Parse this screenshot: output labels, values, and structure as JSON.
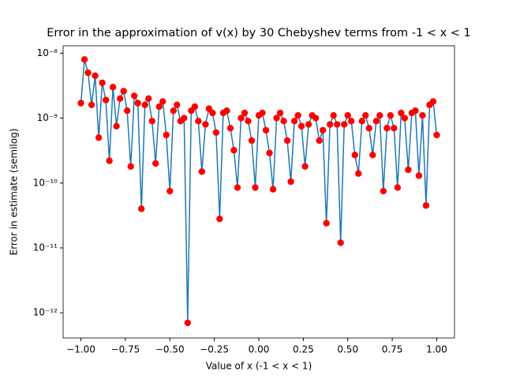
{
  "chart_data": {
    "type": "line",
    "title": "Error in the approximation of v(x) by 30 Chebyshev terms from -1 < x < 1",
    "x_label": "Value of x (-1 < x < 1)",
    "y_label": "Error in estimate (semilog)",
    "y_scale": "log",
    "x": [
      -1,
      -0.98,
      -0.96,
      -0.94,
      -0.92,
      -0.9,
      -0.88,
      -0.86,
      -0.84,
      -0.82,
      -0.8,
      -0.78,
      -0.76,
      -0.74,
      -0.72,
      -0.7,
      -0.68,
      -0.66,
      -0.64,
      -0.62,
      -0.6,
      -0.58,
      -0.56,
      -0.54,
      -0.52,
      -0.5,
      -0.48,
      -0.46,
      -0.44,
      -0.42,
      -0.4,
      -0.38,
      -0.36,
      -0.34,
      -0.32,
      -0.3,
      -0.28,
      -0.26,
      -0.24,
      -0.22,
      -0.2,
      -0.18,
      -0.16,
      -0.14,
      -0.12,
      -0.1,
      -0.08,
      -0.06,
      -0.04,
      -0.02,
      0,
      0.02,
      0.04,
      0.06,
      0.08,
      0.1,
      0.12,
      0.14,
      0.16,
      0.18,
      0.2,
      0.22,
      0.24,
      0.26,
      0.28,
      0.3,
      0.32,
      0.34,
      0.36,
      0.38,
      0.4,
      0.42,
      0.44,
      0.46,
      0.48,
      0.5,
      0.52,
      0.54,
      0.56,
      0.58,
      0.6,
      0.62,
      0.64,
      0.66,
      0.68,
      0.7,
      0.72,
      0.74,
      0.76,
      0.78,
      0.8,
      0.82,
      0.84,
      0.86,
      0.88,
      0.9,
      0.92,
      0.94,
      0.96,
      0.98,
      1
    ],
    "series": [
      {
        "line_color": "#1f77b4",
        "marker_color": "#ff0000",
        "values": [
          1.7e-09,
          8e-09,
          5e-09,
          1.6e-09,
          4.5e-09,
          5e-10,
          3.5e-09,
          1.9e-09,
          2.2e-10,
          3e-09,
          7.5e-10,
          2e-09,
          2.6e-09,
          1.3e-09,
          1.8e-10,
          2.2e-09,
          1.7e-09,
          4e-11,
          1.6e-09,
          2e-09,
          9e-10,
          2e-10,
          1.5e-09,
          1.8e-09,
          5.5e-10,
          7.5e-11,
          1.3e-09,
          1.6e-09,
          9e-10,
          1e-09,
          7e-13,
          1.3e-09,
          1.5e-09,
          9e-10,
          1.5e-10,
          8e-10,
          1.4e-09,
          1.2e-09,
          6e-10,
          2.8e-11,
          1.2e-09,
          1.3e-09,
          7e-10,
          3.2e-10,
          8.5e-11,
          1e-09,
          1.2e-09,
          9e-10,
          4.5e-10,
          8.5e-11,
          1.1e-09,
          1.2e-09,
          6.5e-10,
          2.9e-10,
          8e-11,
          1e-09,
          1.2e-09,
          9e-10,
          4.5e-10,
          1.05e-10,
          9e-10,
          1.1e-09,
          7.5e-10,
          1.8e-10,
          8e-10,
          1.1e-09,
          1e-09,
          4.5e-10,
          6.5e-10,
          2.4e-11,
          8e-10,
          1.1e-09,
          8e-10,
          1.2e-11,
          8e-10,
          1.1e-09,
          9e-10,
          2.7e-10,
          1.4e-10,
          9e-10,
          1.1e-09,
          7e-10,
          2.7e-10,
          9e-10,
          1.1e-09,
          7.5e-11,
          7e-10,
          1.1e-09,
          7e-10,
          8.5e-11,
          1.2e-09,
          1e-09,
          1.6e-10,
          1.2e-09,
          1.3e-09,
          1.3e-10,
          1.1e-09,
          4.5e-11,
          1.6e-09,
          1.8e-09,
          5.5e-10
        ]
      }
    ],
    "xlim": [
      -1.1,
      1.1
    ],
    "xticks": [
      {
        "value": -1,
        "label": "−1.00"
      },
      {
        "value": -0.75,
        "label": "−0.75"
      },
      {
        "value": -0.5,
        "label": "−0.50"
      },
      {
        "value": -0.25,
        "label": "−0.25"
      },
      {
        "value": 0,
        "label": "0.00"
      },
      {
        "value": 0.25,
        "label": "0.25"
      },
      {
        "value": 0.5,
        "label": "0.50"
      },
      {
        "value": 0.75,
        "label": "0.75"
      },
      {
        "value": 1,
        "label": "1.00"
      }
    ],
    "ylim": [
      4.1e-13,
      1.3e-08
    ],
    "yticks": [
      {
        "value": 1e-12,
        "label": "10⁻¹²"
      },
      {
        "value": 1e-11,
        "label": "10⁻¹¹"
      },
      {
        "value": 1e-10,
        "label": "10⁻¹⁰"
      },
      {
        "value": 1e-09,
        "label": "10⁻⁹"
      },
      {
        "value": 1e-08,
        "label": "10⁻⁸"
      }
    ]
  }
}
